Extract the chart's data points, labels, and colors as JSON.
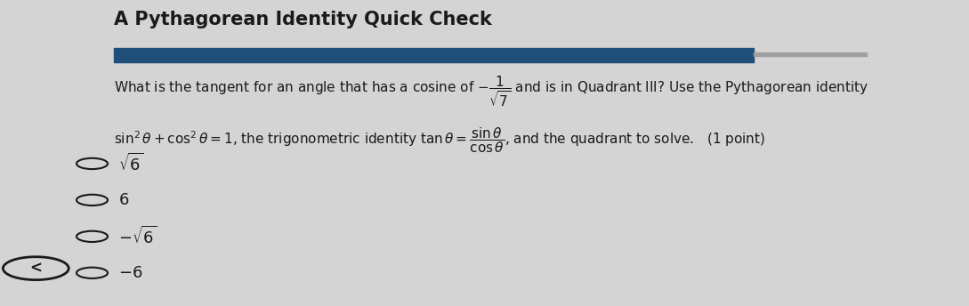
{
  "title": "A Pythagorean Identity Quick Check",
  "bg_color": "#d4d4d4",
  "panel_bg": "#e0e0e0",
  "bar_color": "#1f4e79",
  "bar_color2": "#a0a0a0",
  "font_color": "#1a1a1a",
  "title_font_size": 15,
  "question_font_size": 11,
  "choice_font_size": 13
}
